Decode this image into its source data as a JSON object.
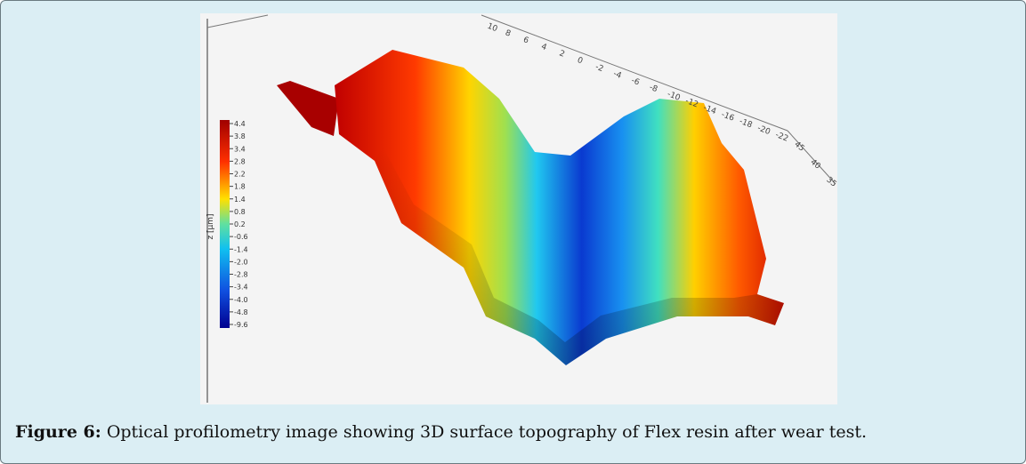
{
  "figure": {
    "caption_label": "Figure 6:",
    "caption_text": "Optical profilometry image showing 3D surface topography of Flex resin after wear test.",
    "colorbar_title": "z [µm]",
    "colorbar_labels": [
      "4.4",
      "3.8",
      "3.4",
      "2.8",
      "2.2",
      "1.8",
      "1.4",
      "0.8",
      "0.2",
      "-0.6",
      "-1.4",
      "-2.0",
      "-2.8",
      "-3.4",
      "-4.0",
      "-4.8",
      "-9.6"
    ],
    "x_axis_labels": [
      "10",
      "8",
      "6",
      "4",
      "2",
      "0",
      "-2",
      "-4",
      "-6",
      "-8",
      "-10",
      "-12",
      "-14",
      "-16",
      "-18",
      "-20",
      "-22"
    ],
    "y_axis_labels": [
      "45",
      "40",
      "35"
    ]
  }
}
